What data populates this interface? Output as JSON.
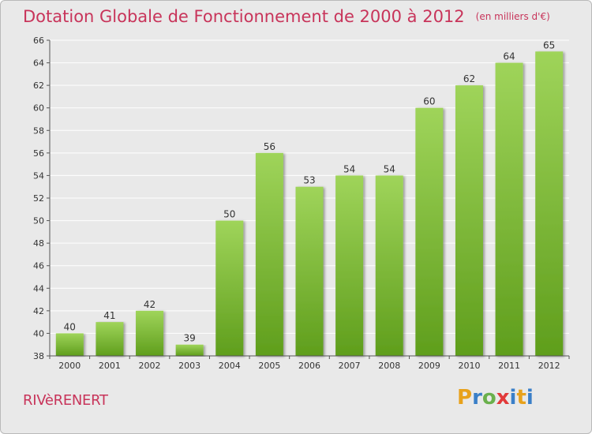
{
  "header": {
    "title": "Dotation Globale de Fonctionnement de 2000 à 2012",
    "unit": "(en milliers d'€)"
  },
  "commune": "RIVèRENERT",
  "logo": {
    "letters": [
      "P",
      "r",
      "o",
      "x",
      "i",
      "t",
      "i"
    ],
    "colors": [
      "#e8a21c",
      "#3a7fc8",
      "#6ab04c",
      "#e23a3a",
      "#3a7fc8",
      "#e8a21c",
      "#3a7fc8"
    ]
  },
  "colors": {
    "bar_light": "#9fd45a",
    "bar_dark": "#5f9e1c",
    "grid": "#ffffff",
    "axis": "#555555"
  },
  "chart_data": {
    "type": "bar",
    "title": "Dotation Globale de Fonctionnement de 2000 à 2012",
    "categories": [
      "2000",
      "2001",
      "2002",
      "2003",
      "2004",
      "2005",
      "2006",
      "2007",
      "2008",
      "2009",
      "2010",
      "2011",
      "2012"
    ],
    "values": [
      40,
      41,
      42,
      39,
      50,
      56,
      53,
      54,
      54,
      60,
      62,
      64,
      65
    ],
    "ylim": [
      38,
      66
    ],
    "yticks": [
      38,
      40,
      42,
      44,
      46,
      48,
      50,
      52,
      54,
      56,
      58,
      60,
      62,
      64,
      66
    ],
    "grid": true
  }
}
